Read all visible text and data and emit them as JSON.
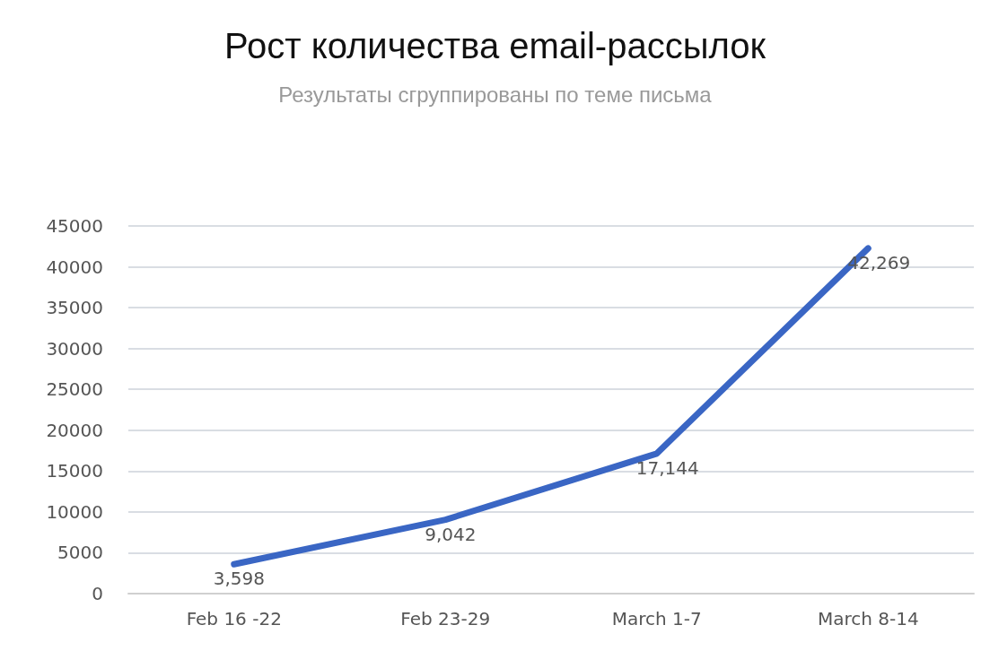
{
  "chart_data": {
    "type": "line",
    "title": "Рост количества email-рассылок",
    "subtitle": "Результаты сгруппированы по теме письма",
    "categories": [
      "Feb 16 -22",
      "Feb 23-29",
      "March 1-7",
      "March 8-14"
    ],
    "series": [
      {
        "color": "#3a66c4",
        "values": [
          3598,
          9042,
          17144,
          42269
        ],
        "value_labels": [
          "3,598",
          "9,042",
          "17,144",
          "42,269"
        ]
      }
    ],
    "ylim": [
      0,
      45000
    ],
    "yticks": [
      0,
      5000,
      10000,
      15000,
      20000,
      25000,
      30000,
      35000,
      40000,
      45000
    ],
    "grid": "y",
    "marker": "none",
    "line_style": "solid"
  }
}
